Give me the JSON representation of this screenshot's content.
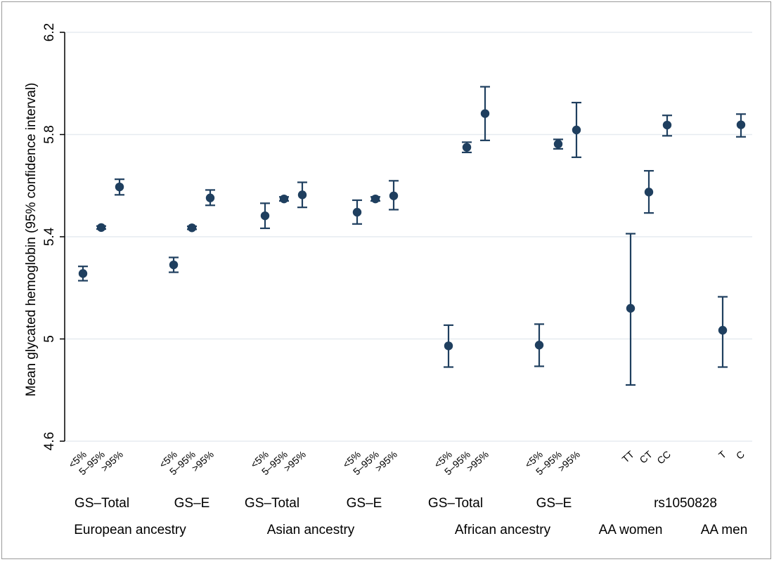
{
  "chart_data": {
    "type": "scatter",
    "style": "point-with-error-bars",
    "ylabel": "Mean glycated hemoglobin (95% confidence interval)",
    "ylim": [
      4.6,
      6.2
    ],
    "yticks": [
      "4.6",
      "5",
      "5.4",
      "5.8",
      "6.2"
    ],
    "grid": true,
    "colors": {
      "marker": "#1f3f5f",
      "grid": "#e6ebf0",
      "axis": "#000000"
    },
    "points": [
      {
        "label": "<5%",
        "y": 5.256,
        "lo": 5.228,
        "hi": 5.284
      },
      {
        "label": "5–95%",
        "y": 5.436,
        "lo": 5.43,
        "hi": 5.442
      },
      {
        "label": ">95%",
        "y": 5.595,
        "lo": 5.564,
        "hi": 5.625
      },
      {
        "label": "<5%",
        "y": 5.29,
        "lo": 5.261,
        "hi": 5.319
      },
      {
        "label": "5–95%",
        "y": 5.435,
        "lo": 5.429,
        "hi": 5.441
      },
      {
        "label": ">95%",
        "y": 5.552,
        "lo": 5.523,
        "hi": 5.583
      },
      {
        "label": "<5%",
        "y": 5.482,
        "lo": 5.433,
        "hi": 5.531
      },
      {
        "label": "5–95%",
        "y": 5.548,
        "lo": 5.54,
        "hi": 5.556
      },
      {
        "label": ">95%",
        "y": 5.564,
        "lo": 5.515,
        "hi": 5.613
      },
      {
        "label": "<5%",
        "y": 5.496,
        "lo": 5.45,
        "hi": 5.543
      },
      {
        "label": "5–95%",
        "y": 5.548,
        "lo": 5.54,
        "hi": 5.556
      },
      {
        "label": ">95%",
        "y": 5.56,
        "lo": 5.506,
        "hi": 5.619
      },
      {
        "label": "<5%",
        "y": 4.973,
        "lo": 4.89,
        "hi": 5.054
      },
      {
        "label": "5–95%",
        "y": 5.75,
        "lo": 5.73,
        "hi": 5.77
      },
      {
        "label": ">95%",
        "y": 5.882,
        "lo": 5.777,
        "hi": 5.987
      },
      {
        "label": "<5%",
        "y": 4.976,
        "lo": 4.893,
        "hi": 5.058
      },
      {
        "label": "5–95%",
        "y": 5.763,
        "lo": 5.744,
        "hi": 5.781
      },
      {
        "label": ">95%",
        "y": 5.818,
        "lo": 5.711,
        "hi": 5.925
      },
      {
        "label": "TT",
        "y": 5.12,
        "lo": 4.82,
        "hi": 5.412
      },
      {
        "label": "CT",
        "y": 5.575,
        "lo": 5.493,
        "hi": 5.658
      },
      {
        "label": "CC",
        "y": 5.837,
        "lo": 5.795,
        "hi": 5.875
      },
      {
        "label": "T",
        "y": 5.034,
        "lo": 4.89,
        "hi": 5.165
      },
      {
        "label": "C",
        "y": 5.838,
        "lo": 5.791,
        "hi": 5.88
      }
    ],
    "groups_level1": [
      "GS–Total",
      "GS–E",
      "GS–Total",
      "GS–E",
      "GS–Total",
      "GS–E",
      "rs1050828"
    ],
    "groups_level2": [
      "European ancestry",
      "Asian ancestry",
      "African ancestry",
      "AA women",
      "AA men"
    ]
  }
}
